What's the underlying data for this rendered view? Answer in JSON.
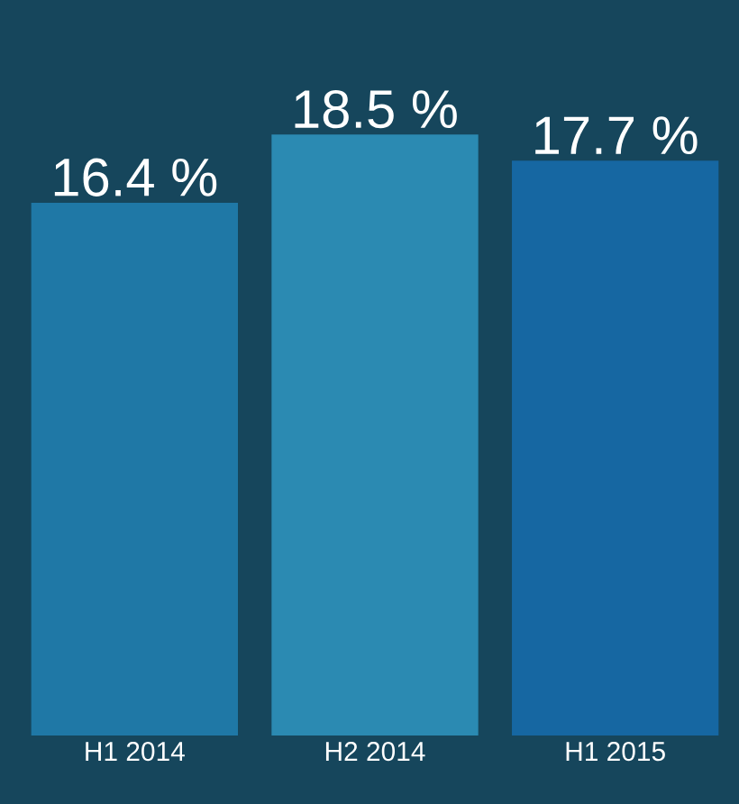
{
  "chart_data": {
    "type": "bar",
    "categories": [
      "H1 2014",
      "H2 2014",
      "H1 2015"
    ],
    "values": [
      16.4,
      18.5,
      17.7
    ],
    "value_labels": [
      "16.4 %",
      "18.5 %",
      "17.7 %"
    ],
    "colors": [
      "#1f78a6",
      "#2b8ab2",
      "#1667a2"
    ]
  }
}
